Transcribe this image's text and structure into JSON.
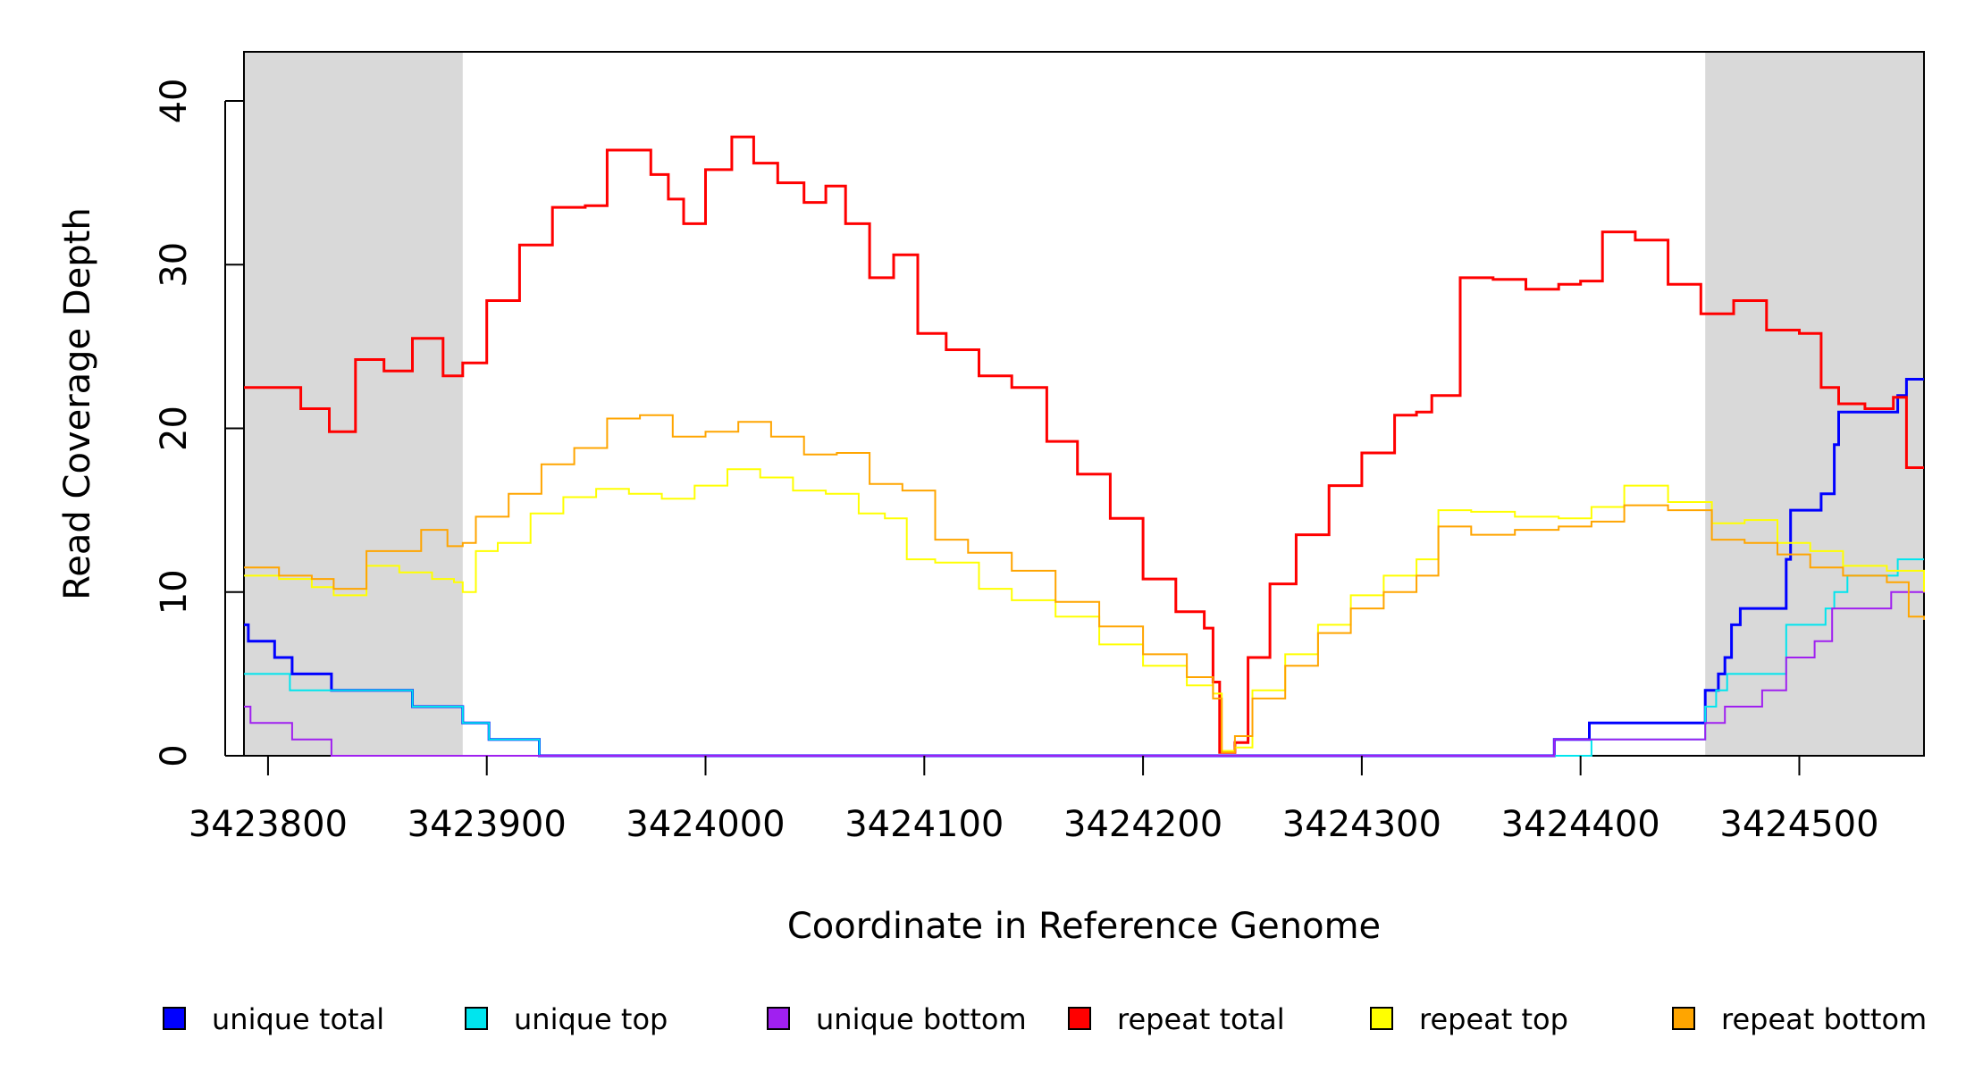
{
  "chart_data": {
    "type": "line",
    "xlabel": "Coordinate in Reference Genome",
    "ylabel": "Read Coverage Depth",
    "xlim": [
      3423789,
      3424557
    ],
    "ylim": [
      0,
      43
    ],
    "x_ticks": [
      3423800,
      3423900,
      3424000,
      3424100,
      3424200,
      3424300,
      3424400,
      3424500
    ],
    "x_tick_labels": [
      "3423800",
      "3423900",
      "3424000",
      "3424100",
      "3424200",
      "3424300",
      "3424400",
      "3424500"
    ],
    "y_ticks": [
      0,
      10,
      20,
      30,
      40
    ],
    "y_tick_labels": [
      "0",
      "10",
      "20",
      "30",
      "40"
    ],
    "shaded_regions": [
      [
        3423789,
        3423889
      ],
      [
        3424457,
        3424557
      ]
    ],
    "legend": {
      "position": "bottom"
    },
    "series": [
      {
        "name": "unique total",
        "color": "#0000ff",
        "width": 3,
        "x": [
          3423789,
          3423791,
          3423801,
          3423803,
          3423811,
          3423829,
          3423866,
          3423889,
          3423901,
          3423924,
          3424388,
          3424404,
          3424457,
          3424463,
          3424466,
          3424469,
          3424473,
          3424480,
          3424494,
          3424496,
          3424510,
          3424516,
          3424518,
          3424542,
          3424545,
          3424549,
          3424557
        ],
        "y": [
          8,
          7,
          7,
          6,
          5,
          4,
          3,
          2,
          1,
          0,
          1,
          2,
          4,
          5,
          6,
          8,
          9,
          9,
          12,
          15,
          16,
          19,
          21,
          21,
          22,
          23,
          23
        ]
      },
      {
        "name": "unique top",
        "color": "#00e5ee",
        "width": 2,
        "x": [
          3423789,
          3423810,
          3423829,
          3423866,
          3423889,
          3423901,
          3423924,
          3424405,
          3424457,
          3424462,
          3424467,
          3424494,
          3424512,
          3424516,
          3424522,
          3424545,
          3424557
        ],
        "y": [
          5,
          4,
          4,
          3,
          2,
          1,
          0,
          1,
          3,
          4,
          5,
          8,
          9,
          10,
          11,
          12,
          12
        ]
      },
      {
        "name": "unique bottom",
        "color": "#a020f0",
        "width": 2,
        "x": [
          3423789,
          3423792,
          3423800,
          3423811,
          3423829,
          3424388,
          3424457,
          3424466,
          3424483,
          3424494,
          3424507,
          3424515,
          3424542,
          3424557
        ],
        "y": [
          3,
          2,
          2,
          1,
          0,
          1,
          2,
          3,
          4,
          6,
          7,
          9,
          10,
          11
        ]
      },
      {
        "name": "repeat total",
        "color": "#ff0000",
        "width": 3,
        "x": [
          3423789,
          3423800,
          3423815,
          3423828,
          3423840,
          3423853,
          3423866,
          3423880,
          3423889,
          3423900,
          3423915,
          3423930,
          3423945,
          3423955,
          3423966,
          3423975,
          3423983,
          3423990,
          3424000,
          3424012,
          3424022,
          3424033,
          3424045,
          3424055,
          3424064,
          3424075,
          3424086,
          3424097,
          3424110,
          3424125,
          3424140,
          3424156,
          3424170,
          3424185,
          3424200,
          3424215,
          3424228,
          3424232,
          3424235,
          3424238,
          3424242,
          3424248,
          3424258,
          3424270,
          3424285,
          3424300,
          3424315,
          3424325,
          3424332,
          3424345,
          3424360,
          3424375,
          3424390,
          3424400,
          3424410,
          3424425,
          3424440,
          3424455,
          3424470,
          3424485,
          3424500,
          3424510,
          3424518,
          3424530,
          3424543,
          3424549,
          3424557
        ],
        "y": [
          22.5,
          22.5,
          21.2,
          19.8,
          24.2,
          23.5,
          25.5,
          23.2,
          24.0,
          27.8,
          31.2,
          33.5,
          33.6,
          37.0,
          37.0,
          35.5,
          34.0,
          32.5,
          35.8,
          37.8,
          36.2,
          35.0,
          33.8,
          34.8,
          32.5,
          29.2,
          30.6,
          25.8,
          24.8,
          23.2,
          22.5,
          19.2,
          17.2,
          14.5,
          10.8,
          8.8,
          7.8,
          4.5,
          0.2,
          0.2,
          0.8,
          6.0,
          10.5,
          13.5,
          16.5,
          18.5,
          20.8,
          21.0,
          22.0,
          29.2,
          29.1,
          28.5,
          28.8,
          29.0,
          32.0,
          31.5,
          28.8,
          27.0,
          27.8,
          26.0,
          25.8,
          22.5,
          21.5,
          21.2,
          21.9,
          17.6,
          17.6
        ]
      },
      {
        "name": "repeat top",
        "color": "#ffff00",
        "width": 2,
        "x": [
          3423789,
          3423805,
          3423820,
          3423830,
          3423845,
          3423860,
          3423875,
          3423885,
          3423889,
          3423895,
          3423905,
          3423920,
          3423935,
          3423950,
          3423965,
          3423980,
          3423995,
          3424010,
          3424025,
          3424040,
          3424055,
          3424070,
          3424082,
          3424092,
          3424105,
          3424125,
          3424140,
          3424160,
          3424180,
          3424200,
          3424220,
          3424232,
          3424236,
          3424242,
          3424250,
          3424265,
          3424280,
          3424295,
          3424310,
          3424325,
          3424335,
          3424350,
          3424370,
          3424390,
          3424405,
          3424420,
          3424440,
          3424460,
          3424475,
          3424490,
          3424505,
          3424520,
          3424540,
          3424557
        ],
        "y": [
          11,
          10.8,
          10.3,
          9.8,
          11.6,
          11.2,
          10.8,
          10.6,
          10.0,
          12.5,
          13.0,
          14.8,
          15.8,
          16.3,
          16.0,
          15.7,
          16.5,
          17.5,
          17.0,
          16.2,
          16.0,
          14.8,
          14.5,
          12.0,
          11.8,
          10.2,
          9.5,
          8.5,
          6.8,
          5.5,
          4.3,
          3.8,
          0.3,
          0.5,
          4.0,
          6.2,
          8.0,
          9.8,
          11.0,
          12.0,
          15.0,
          14.9,
          14.6,
          14.5,
          15.2,
          16.5,
          15.5,
          14.2,
          14.4,
          13.0,
          12.5,
          11.6,
          11.3,
          10.0
        ]
      },
      {
        "name": "repeat bottom",
        "color": "#ffa500",
        "width": 2,
        "x": [
          3423789,
          3423805,
          3423820,
          3423830,
          3423845,
          3423860,
          3423870,
          3423882,
          3423889,
          3423895,
          3423910,
          3423925,
          3423940,
          3423955,
          3423970,
          3423985,
          3424000,
          3424015,
          3424030,
          3424045,
          3424060,
          3424075,
          3424090,
          3424105,
          3424120,
          3424140,
          3424160,
          3424180,
          3424200,
          3424220,
          3424232,
          3424236,
          3424242,
          3424250,
          3424265,
          3424280,
          3424295,
          3424310,
          3424325,
          3424335,
          3424350,
          3424370,
          3424390,
          3424405,
          3424420,
          3424440,
          3424460,
          3424475,
          3424490,
          3424505,
          3424520,
          3424540,
          3424550,
          3424557
        ],
        "y": [
          11.5,
          11.0,
          10.8,
          10.2,
          12.5,
          12.5,
          13.8,
          12.8,
          13.0,
          14.6,
          16.0,
          17.8,
          18.8,
          20.6,
          20.8,
          19.5,
          19.8,
          20.4,
          19.5,
          18.4,
          18.5,
          16.6,
          16.2,
          13.2,
          12.4,
          11.3,
          9.4,
          7.9,
          6.2,
          4.8,
          3.5,
          0.2,
          1.2,
          3.5,
          5.5,
          7.5,
          9.0,
          10.0,
          11.0,
          14.0,
          13.5,
          13.8,
          14.0,
          14.3,
          15.3,
          15.0,
          13.2,
          13.0,
          12.3,
          11.5,
          11.0,
          10.6,
          8.5,
          8.3
        ]
      }
    ]
  }
}
